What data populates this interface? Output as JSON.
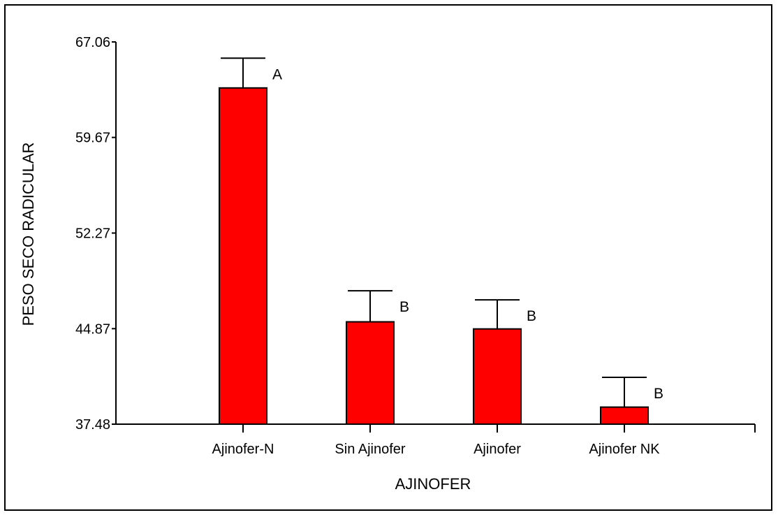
{
  "chart_data": {
    "type": "bar",
    "title": "",
    "xlabel": "AJINOFER",
    "ylabel": "PESO SECO RADICULAR",
    "categories": [
      "Ajinofer-N",
      "Sin Ajinofer",
      "Ajinofer",
      "Ajinofer NK"
    ],
    "values": [
      63.5,
      45.4,
      44.85,
      38.8
    ],
    "error_upper": [
      65.8,
      47.8,
      47.1,
      41.1
    ],
    "significance": [
      "A",
      "B",
      "B",
      "B"
    ],
    "yticks": [
      "37.48",
      "44.87",
      "52.27",
      "59.67",
      "67.06"
    ],
    "ylim": [
      37.48,
      67.06
    ],
    "bar_color": "#ff0000",
    "grid": false,
    "legend": "none"
  }
}
